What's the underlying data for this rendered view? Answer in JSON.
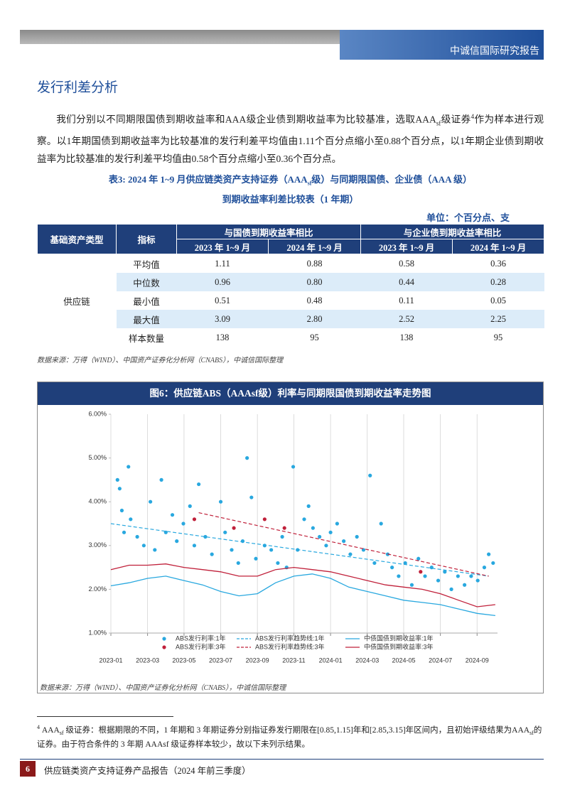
{
  "header": {
    "brand": "中诚信国际研究报告"
  },
  "section_title": "发行利差分析",
  "paragraph": [
    "我们分别以不同期限国债到期收益率和AAA级企业债到期收益率为比较基准，选取AAA",
    "sf",
    "级证券",
    "4",
    "作为样本进行观察。以1年期国债到期收益率为比较基准的发行利差平均值由1.11个百分点缩小至0.88个百分点，以1年期企业债到期收益率为比较基准的发行利差平均值由0.58个百分点缩小至0.36个百分点。"
  ],
  "table_caption": {
    "line1": [
      "表3: 2024 年 1~9 月供应链类资产支持证券（AAA",
      "sf",
      "级）与同期限国债、企业债（AAA 级）"
    ],
    "line2": "到期收益率利差比较表（1 年期）"
  },
  "unit": "单位：个百分点、支",
  "table": {
    "headers": [
      "基础资产类型",
      "指标",
      "与国债到期收益率相比",
      "与企业债到期收益率相比"
    ],
    "subheaders": [
      "2023 年 1~9 月",
      "2024 年 1~9 月",
      "2023 年 1~9 月",
      "2024 年 1~9 月"
    ],
    "group": "供应链",
    "rows": [
      [
        "平均值",
        "1.11",
        "0.88",
        "0.58",
        "0.36"
      ],
      [
        "中位数",
        "0.96",
        "0.80",
        "0.44",
        "0.28"
      ],
      [
        "最小值",
        "0.51",
        "0.48",
        "0.11",
        "0.05"
      ],
      [
        "最大值",
        "3.09",
        "2.80",
        "2.52",
        "2.25"
      ],
      [
        "样本数量",
        "138",
        "95",
        "138",
        "95"
      ]
    ]
  },
  "table_source": "数据来源：万得（WIND）、中国资产证券化分析网（CNABS），中诚信国际整理",
  "chart_data": {
    "type": "scatter",
    "title": "图6：供应链ABS（AAAsf级）利率与同期限国债到期收益率走势图",
    "xlim": [
      2023.0,
      2024.76
    ],
    "xticks": [
      {
        "value": 2023.0,
        "label": "2023-01"
      },
      {
        "value": 2023.167,
        "label": "2023-03"
      },
      {
        "value": 2023.333,
        "label": "2023-05"
      },
      {
        "value": 2023.5,
        "label": "2023-07"
      },
      {
        "value": 2023.667,
        "label": "2023-09"
      },
      {
        "value": 2023.833,
        "label": "2023-11"
      },
      {
        "value": 2024.0,
        "label": "2024-01"
      },
      {
        "value": 2024.167,
        "label": "2024-03"
      },
      {
        "value": 2024.333,
        "label": "2024-05"
      },
      {
        "value": 2024.5,
        "label": "2024-07"
      },
      {
        "value": 2024.667,
        "label": "2024-09"
      }
    ],
    "ylim": [
      1,
      6
    ],
    "yticks": [
      {
        "value": 1,
        "label": "1.00%"
      },
      {
        "value": 2,
        "label": "2.00%"
      },
      {
        "value": 3,
        "label": "3.00%"
      },
      {
        "value": 4,
        "label": "4.00%"
      },
      {
        "value": 5,
        "label": "5.00%"
      },
      {
        "value": 6,
        "label": "6.00%"
      }
    ],
    "grid": true,
    "series": [
      {
        "name": "ABS发行利率:1年",
        "type": "scatter",
        "color": "#29a8df",
        "x": [
          2023.03,
          2023.04,
          2023.05,
          2023.06,
          2023.08,
          2023.09,
          2023.12,
          2023.15,
          2023.18,
          2023.2,
          2023.23,
          2023.25,
          2023.28,
          2023.3,
          2023.33,
          2023.36,
          2023.38,
          2023.4,
          2023.43,
          2023.46,
          2023.5,
          2023.52,
          2023.55,
          2023.58,
          2023.6,
          2023.62,
          2023.64,
          2023.66,
          2023.7,
          2023.73,
          2023.76,
          2023.78,
          2023.8,
          2023.83,
          2023.85,
          2023.88,
          2023.9,
          2023.92,
          2023.95,
          2023.98,
          2024.0,
          2024.03,
          2024.06,
          2024.09,
          2024.12,
          2024.15,
          2024.18,
          2024.2,
          2024.23,
          2024.26,
          2024.28,
          2024.31,
          2024.34,
          2024.37,
          2024.4,
          2024.43,
          2024.46,
          2024.49,
          2024.52,
          2024.55,
          2024.58,
          2024.61,
          2024.64,
          2024.67,
          2024.7,
          2024.72,
          2024.74
        ],
        "values": [
          4.5,
          4.3,
          3.8,
          3.3,
          4.8,
          3.6,
          3.2,
          3.0,
          4.0,
          2.9,
          4.5,
          3.3,
          3.7,
          3.1,
          3.5,
          3.9,
          3.0,
          4.4,
          3.2,
          2.8,
          4.0,
          3.3,
          2.9,
          2.6,
          3.1,
          5.0,
          4.1,
          2.7,
          3.0,
          2.9,
          2.6,
          3.2,
          2.5,
          4.8,
          2.9,
          3.6,
          3.9,
          3.4,
          3.2,
          3.0,
          3.3,
          3.5,
          3.1,
          2.8,
          3.2,
          2.9,
          4.6,
          2.6,
          3.5,
          2.8,
          2.5,
          2.3,
          2.6,
          2.1,
          2.7,
          2.3,
          2.5,
          2.2,
          2.4,
          2.0,
          2.3,
          2.1,
          2.3,
          2.2,
          2.5,
          2.8,
          2.6
        ]
      },
      {
        "name": "ABS发行利率趋势线:1年",
        "type": "line",
        "dash": true,
        "color": "#29a8df",
        "x": [
          2023.0,
          2024.72
        ],
        "values": [
          3.5,
          2.3
        ]
      },
      {
        "name": "中债国债到期收益率:1年",
        "type": "line",
        "color": "#29a8df",
        "x": [
          2023.0,
          2023.083,
          2023.167,
          2023.25,
          2023.333,
          2023.417,
          2023.5,
          2023.583,
          2023.667,
          2023.75,
          2023.833,
          2023.917,
          2024.0,
          2024.083,
          2024.167,
          2024.25,
          2024.333,
          2024.417,
          2024.5,
          2024.583,
          2024.667,
          2024.75
        ],
        "values": [
          2.08,
          2.15,
          2.25,
          2.3,
          2.2,
          2.1,
          1.95,
          1.85,
          1.9,
          2.15,
          2.3,
          2.35,
          2.25,
          2.05,
          1.95,
          1.85,
          1.75,
          1.7,
          1.65,
          1.55,
          1.45,
          1.4
        ]
      },
      {
        "name": "ABS发行利率:3年",
        "type": "scatter",
        "color": "#c0203a",
        "x": [
          2023.38,
          2023.56,
          2023.7,
          2023.79,
          2024.41
        ],
        "values": [
          3.6,
          3.4,
          3.6,
          3.4,
          2.4
        ]
      },
      {
        "name": "ABS发行利率趋势线:3年",
        "type": "line",
        "dash": true,
        "color": "#c0203a",
        "x": [
          2023.4,
          2024.72
        ],
        "values": [
          3.75,
          2.3
        ]
      },
      {
        "name": "中债国债到期收益率:3年",
        "type": "line",
        "color": "#c0203a",
        "x": [
          2023.0,
          2023.083,
          2023.167,
          2023.25,
          2023.333,
          2023.417,
          2023.5,
          2023.583,
          2023.667,
          2023.75,
          2023.833,
          2023.917,
          2024.0,
          2024.083,
          2024.167,
          2024.25,
          2024.333,
          2024.417,
          2024.5,
          2024.583,
          2024.667,
          2024.75
        ],
        "values": [
          2.45,
          2.55,
          2.55,
          2.58,
          2.5,
          2.45,
          2.4,
          2.3,
          2.3,
          2.45,
          2.5,
          2.45,
          2.4,
          2.3,
          2.2,
          2.1,
          2.05,
          2.0,
          1.9,
          1.75,
          1.6,
          1.65
        ]
      }
    ]
  },
  "chart_source": "数据来源：万得（WIND）、中国资产证券化分析网（CNABS），中诚信国际整理",
  "footnote": {
    "mark": "4",
    "parts": [
      "AAA",
      "sf",
      " 级证券：根据期限的不同，1 年期和 3 年期证券分别指证券发行期限在[0.85,1.15]年和[2.85,3.15]年区间内，且初始评级结果为",
      "AAA",
      "sf",
      "的证券。由于符合条件的 3 年期 AAAsf 级证券样本较少，故以下未列示结果。"
    ]
  },
  "footer": {
    "page": "6",
    "title": "供应链类资产支持证券产品报告（2024 年前三季度）"
  }
}
